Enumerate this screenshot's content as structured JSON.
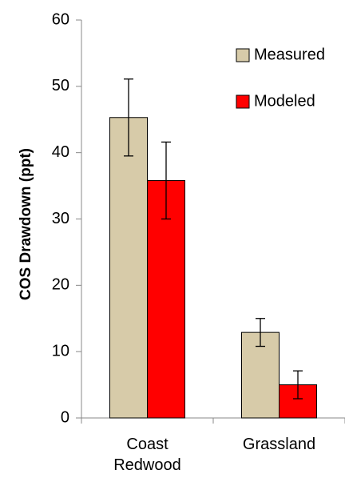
{
  "chart_data": {
    "type": "bar",
    "y_label": "COS Drawdown (ppt)",
    "categories": [
      "Coast Redwood",
      "Grassland"
    ],
    "series": [
      {
        "name": "Measured",
        "color": "#d7cba9",
        "values": [
          45.3,
          12.9
        ],
        "errors": [
          5.8,
          2.1
        ]
      },
      {
        "name": "Modeled",
        "color": "#ff0000",
        "values": [
          35.8,
          5.0
        ],
        "errors": [
          5.8,
          2.1
        ]
      }
    ],
    "ylim": [
      0,
      60
    ],
    "yticks": [
      0,
      10,
      20,
      30,
      40,
      50,
      60
    ],
    "legend": "upper right",
    "grid": false
  }
}
